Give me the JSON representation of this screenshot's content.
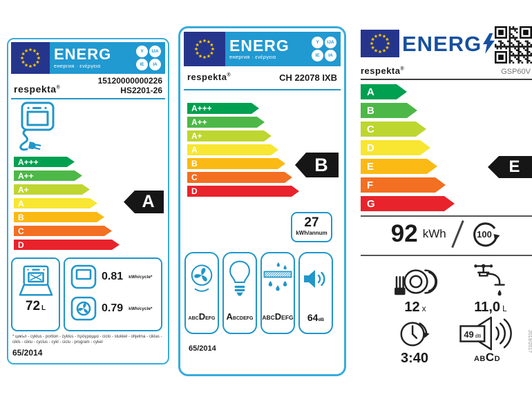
{
  "colors": {
    "band_blue": "#2199d1",
    "border_cyan": "#38abdd",
    "eu_flag_blue": "#26358c",
    "star_yellow": "#ffcc00",
    "icon_blue": "#2196c9",
    "energ_dark_blue": "#17509f",
    "tag_black": "#161616",
    "class_scale": [
      "#00a050",
      "#4db848",
      "#bed630",
      "#f8e632",
      "#fbb914",
      "#f36f21",
      "#e8232b"
    ]
  },
  "oven_label": {
    "header": {
      "energ": "ENERG",
      "sub": "енергия · ενέργεια",
      "circles": [
        "Y",
        "IJA",
        "IE",
        "IA"
      ]
    },
    "model_number": "15120000000226",
    "model_name": "HS2201-26",
    "brand": "respekta",
    "brand_mark": "®",
    "classes": [
      "A+++",
      "A++",
      "A+",
      "A",
      "B",
      "C",
      "D"
    ],
    "rating": "A",
    "volume": {
      "value": "72",
      "unit": "L"
    },
    "energy_conventional": {
      "value": "0.81",
      "unit": "kWh/cycle*"
    },
    "energy_fan": {
      "value": "0.79",
      "unit": "kWh/cycle*"
    },
    "footnote": "* цикъл - cyklus - portion - zyklus - πρόγραμμα - ciclo - stukkel - ohjelma - ciklas - cikls - ciklu - cyclus - cykl - ciclu - program - cykel",
    "regulation": "65/2014"
  },
  "hood_label": {
    "header": {
      "energ": "ENERG",
      "sub": "енергия · ενέργεια",
      "circles": [
        "Y",
        "IJA",
        "IE",
        "IA"
      ]
    },
    "brand": "respekta",
    "brand_mark": "®",
    "model": "CH 22078 IXB",
    "classes": [
      "A+++",
      "A++",
      "A+",
      "A",
      "B",
      "C",
      "D"
    ],
    "rating": "B",
    "annual_energy": {
      "value": "27",
      "unit": "kWh/annum"
    },
    "fan_class": {
      "pre": "ABC",
      "current": "D",
      "post": "EFG"
    },
    "lighting_class": {
      "pre": "",
      "current": "A",
      "post": "BCDEFG"
    },
    "grease_class": {
      "pre": "ABC",
      "current": "D",
      "post": "EFG"
    },
    "noise": {
      "value": "64",
      "unit": "dB"
    },
    "regulation": "65/2014"
  },
  "dishwasher_label": {
    "energ": "ENERG",
    "brand": "respekta",
    "brand_mark": "®",
    "model": "GSP60V",
    "classes": [
      "A",
      "B",
      "C",
      "D",
      "E",
      "F",
      "G"
    ],
    "rating": "E",
    "energy": {
      "value": "92",
      "unit": "kWh",
      "per": "100"
    },
    "capacity": {
      "value": "12",
      "unit": "x"
    },
    "water": {
      "value": "11,0",
      "unit": "L"
    },
    "duration": "3:40",
    "noise": {
      "value": "49",
      "unit": "dB",
      "pre": "AB",
      "current": "C",
      "post": "D"
    },
    "regulation": "2019/2017"
  }
}
